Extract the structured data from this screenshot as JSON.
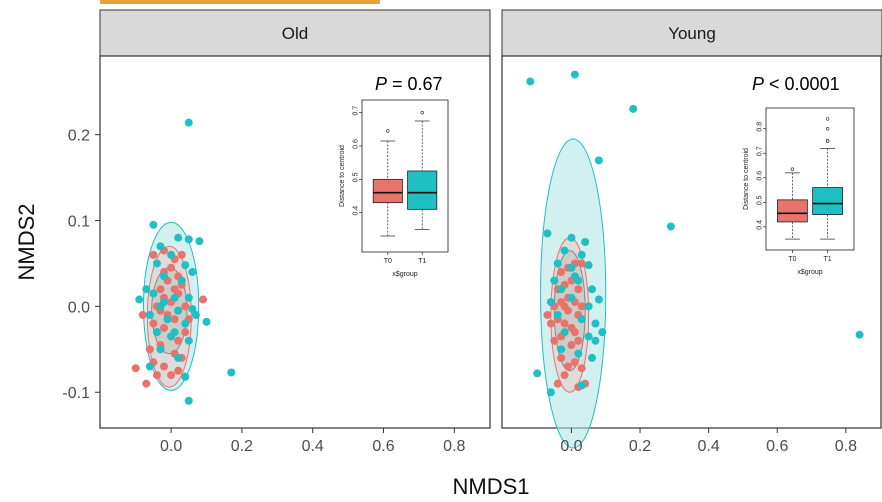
{
  "chart_data": {
    "type": "scatter",
    "xlabel": "NMDS1",
    "ylabel": "NMDS2",
    "xlim": [
      -0.15,
      0.85
    ],
    "ylim": [
      -0.13,
      0.28
    ],
    "x_ticks": [
      "0.0",
      "0.2",
      "0.4",
      "0.6",
      "0.8"
    ],
    "y_ticks": [
      "-0.1",
      "0.0",
      "0.1",
      "0.2"
    ],
    "grid": false,
    "colors": {
      "T0": "#e8736b",
      "T1": "#1fbfc3"
    },
    "panels": [
      {
        "title": "Old",
        "p_label": "P",
        "p_text": " = 0.67",
        "series": [
          {
            "group": "T0",
            "points": [
              [
                -0.1,
                -0.072
              ],
              [
                -0.07,
                -0.09
              ],
              [
                -0.05,
                -0.065
              ],
              [
                -0.04,
                -0.08
              ],
              [
                -0.02,
                -0.07
              ],
              [
                0.0,
                -0.08
              ],
              [
                0.02,
                -0.075
              ],
              [
                -0.06,
                -0.05
              ],
              [
                -0.03,
                -0.045
              ],
              [
                0.01,
                -0.055
              ],
              [
                0.03,
                -0.06
              ],
              [
                -0.05,
                -0.02
              ],
              [
                -0.04,
                -0.03
              ],
              [
                -0.02,
                -0.025
              ],
              [
                0.0,
                -0.035
              ],
              [
                0.02,
                -0.04
              ],
              [
                0.04,
                -0.03
              ],
              [
                -0.04,
                0.0
              ],
              [
                -0.02,
                0.01
              ],
              [
                0.0,
                0.005
              ],
              [
                0.02,
                -0.005
              ],
              [
                0.04,
                0.0
              ],
              [
                -0.03,
                0.02
              ],
              [
                -0.01,
                0.03
              ],
              [
                0.01,
                0.02
              ],
              [
                0.03,
                0.025
              ],
              [
                -0.02,
                0.04
              ],
              [
                0.0,
                0.045
              ],
              [
                0.02,
                0.035
              ],
              [
                -0.05,
                0.06
              ],
              [
                -0.02,
                0.065
              ],
              [
                0.01,
                0.055
              ],
              [
                0.03,
                0.06
              ],
              [
                -0.08,
                -0.01
              ],
              [
                0.05,
                -0.015
              ],
              [
                0.09,
                0.008
              ],
              [
                -0.01,
                -0.01
              ],
              [
                0.01,
                -0.015
              ],
              [
                -0.03,
                -0.005
              ],
              [
                0.02,
                0.015
              ]
            ]
          },
          {
            "group": "T1",
            "points": [
              [
                0.05,
                0.214
              ],
              [
                -0.05,
                0.095
              ],
              [
                0.02,
                0.08
              ],
              [
                0.05,
                0.078
              ],
              [
                0.08,
                0.076
              ],
              [
                -0.03,
                0.07
              ],
              [
                0.0,
                0.06
              ],
              [
                -0.04,
                0.05
              ],
              [
                0.04,
                0.048
              ],
              [
                -0.02,
                0.035
              ],
              [
                0.03,
                0.03
              ],
              [
                0.06,
                0.04
              ],
              [
                -0.07,
                0.02
              ],
              [
                -0.05,
                0.015
              ],
              [
                0.01,
                0.01
              ],
              [
                0.05,
                0.01
              ],
              [
                -0.09,
                0.008
              ],
              [
                -0.03,
                0.0
              ],
              [
                0.02,
                -0.005
              ],
              [
                0.06,
                -0.003
              ],
              [
                -0.06,
                -0.01
              ],
              [
                -0.01,
                -0.015
              ],
              [
                0.04,
                -0.02
              ],
              [
                0.07,
                -0.01
              ],
              [
                -0.04,
                -0.03
              ],
              [
                0.0,
                -0.035
              ],
              [
                0.1,
                -0.018
              ],
              [
                -0.03,
                -0.05
              ],
              [
                0.02,
                -0.06
              ],
              [
                0.05,
                -0.04
              ],
              [
                -0.06,
                -0.07
              ],
              [
                0.04,
                -0.082
              ],
              [
                0.17,
                -0.077
              ],
              [
                0.05,
                -0.11
              ],
              [
                0.01,
                -0.03
              ],
              [
                -0.02,
                0.005
              ]
            ]
          }
        ],
        "ellipses": {
          "T0": {
            "center": [
              -0.005,
              -0.012
            ],
            "radii": [
              0.062,
              0.082
            ]
          },
          "T1": {
            "center": [
              0.0,
              0.0
            ],
            "radii": [
              0.078,
              0.098
            ]
          },
          "overlap": {
            "center": [
              -0.005,
              -0.005
            ],
            "radii": [
              0.05,
              0.05
            ]
          }
        },
        "inset": {
          "type": "box",
          "ylabel": "Distance to centroid",
          "xlabel": "x$group",
          "categories": [
            "T0",
            "T1"
          ],
          "yticks": [
            "0.4",
            "0.5",
            "0.6",
            "0.7"
          ],
          "ylim": [
            0.3,
            0.72
          ],
          "boxes": [
            {
              "min": 0.33,
              "q1": 0.43,
              "median": 0.46,
              "q3": 0.5,
              "max": 0.615,
              "outliers": [
                0.645
              ]
            },
            {
              "min": 0.35,
              "q1": 0.41,
              "median": 0.46,
              "q3": 0.525,
              "max": 0.675,
              "outliers": [
                0.7
              ]
            }
          ]
        }
      },
      {
        "title": "Young",
        "p_label": "P",
        "p_text": " < 0.0001",
        "series": [
          {
            "group": "T0",
            "points": [
              [
                -0.04,
                -0.09
              ],
              [
                -0.02,
                -0.08
              ],
              [
                0.02,
                -0.094
              ],
              [
                0.04,
                -0.09
              ],
              [
                -0.03,
                -0.06
              ],
              [
                -0.01,
                -0.07
              ],
              [
                0.01,
                -0.065
              ],
              [
                0.03,
                -0.072
              ],
              [
                -0.05,
                -0.04
              ],
              [
                -0.03,
                -0.035
              ],
              [
                0.0,
                -0.045
              ],
              [
                0.02,
                -0.04
              ],
              [
                -0.06,
                -0.02
              ],
              [
                -0.04,
                -0.015
              ],
              [
                -0.02,
                -0.02
              ],
              [
                0.0,
                -0.025
              ],
              [
                0.02,
                -0.01
              ],
              [
                -0.05,
                0.0
              ],
              [
                -0.03,
                0.005
              ],
              [
                -0.01,
                0.01
              ],
              [
                0.01,
                0.005
              ],
              [
                0.03,
                0.0
              ],
              [
                -0.04,
                0.02
              ],
              [
                -0.02,
                0.025
              ],
              [
                0.0,
                0.03
              ],
              [
                0.02,
                0.02
              ],
              [
                -0.03,
                0.04
              ],
              [
                -0.01,
                0.045
              ],
              [
                0.01,
                0.05
              ],
              [
                0.03,
                0.05
              ],
              [
                -0.07,
                -0.01
              ],
              [
                -0.01,
                -0.005
              ],
              [
                0.01,
                -0.03
              ],
              [
                -0.02,
                0.0
              ]
            ]
          },
          {
            "group": "T1",
            "points": [
              [
                -0.12,
                0.262
              ],
              [
                0.01,
                0.27
              ],
              [
                0.18,
                0.23
              ],
              [
                0.08,
                0.17
              ],
              [
                0.29,
                0.093
              ],
              [
                0.84,
                -0.033
              ],
              [
                -0.07,
                0.085
              ],
              [
                0.0,
                0.08
              ],
              [
                0.04,
                0.075
              ],
              [
                -0.02,
                0.065
              ],
              [
                0.03,
                0.06
              ],
              [
                -0.04,
                0.05
              ],
              [
                0.0,
                0.045
              ],
              [
                0.05,
                0.048
              ],
              [
                -0.05,
                0.03
              ],
              [
                0.02,
                0.03
              ],
              [
                -0.03,
                0.02
              ],
              [
                0.06,
                0.02
              ],
              [
                0.0,
                0.01
              ],
              [
                -0.06,
                0.005
              ],
              [
                0.05,
                0.0
              ],
              [
                0.08,
                0.008
              ],
              [
                -0.04,
                -0.01
              ],
              [
                0.03,
                -0.015
              ],
              [
                0.07,
                -0.02
              ],
              [
                -0.02,
                -0.03
              ],
              [
                0.05,
                -0.035
              ],
              [
                -0.03,
                -0.05
              ],
              [
                0.02,
                -0.055
              ],
              [
                0.06,
                -0.06
              ],
              [
                -0.1,
                -0.078
              ],
              [
                -0.06,
                -0.1
              ],
              [
                0.03,
                -0.092
              ],
              [
                0.07,
                -0.04
              ],
              [
                0.09,
                -0.03
              ],
              [
                0.01,
                0.035
              ]
            ]
          }
        ],
        "ellipses": {
          "T0": {
            "center": [
              -0.005,
              -0.01
            ],
            "radii": [
              0.055,
              0.09
            ]
          },
          "T1": {
            "center": [
              0.005,
              0.015
            ],
            "radii": [
              0.095,
              0.18
            ]
          },
          "overlap": {
            "center": [
              -0.005,
              -0.005
            ],
            "radii": [
              0.045,
              0.07
            ]
          }
        },
        "inset": {
          "type": "box",
          "ylabel": "Distance to centroid",
          "xlabel": "x$group",
          "categories": [
            "T0",
            "T1"
          ],
          "yticks": [
            "0.4",
            "0.5",
            "0.6",
            "0.7",
            "0.8"
          ],
          "ylim": [
            0.33,
            0.86
          ],
          "boxes": [
            {
              "min": 0.35,
              "q1": 0.42,
              "median": 0.455,
              "q3": 0.51,
              "max": 0.62,
              "outliers": [
                0.635
              ]
            },
            {
              "min": 0.35,
              "q1": 0.45,
              "median": 0.495,
              "q3": 0.56,
              "max": 0.72,
              "outliers": [
                0.75,
                0.75,
                0.8,
                0.84
              ]
            }
          ]
        }
      }
    ]
  }
}
